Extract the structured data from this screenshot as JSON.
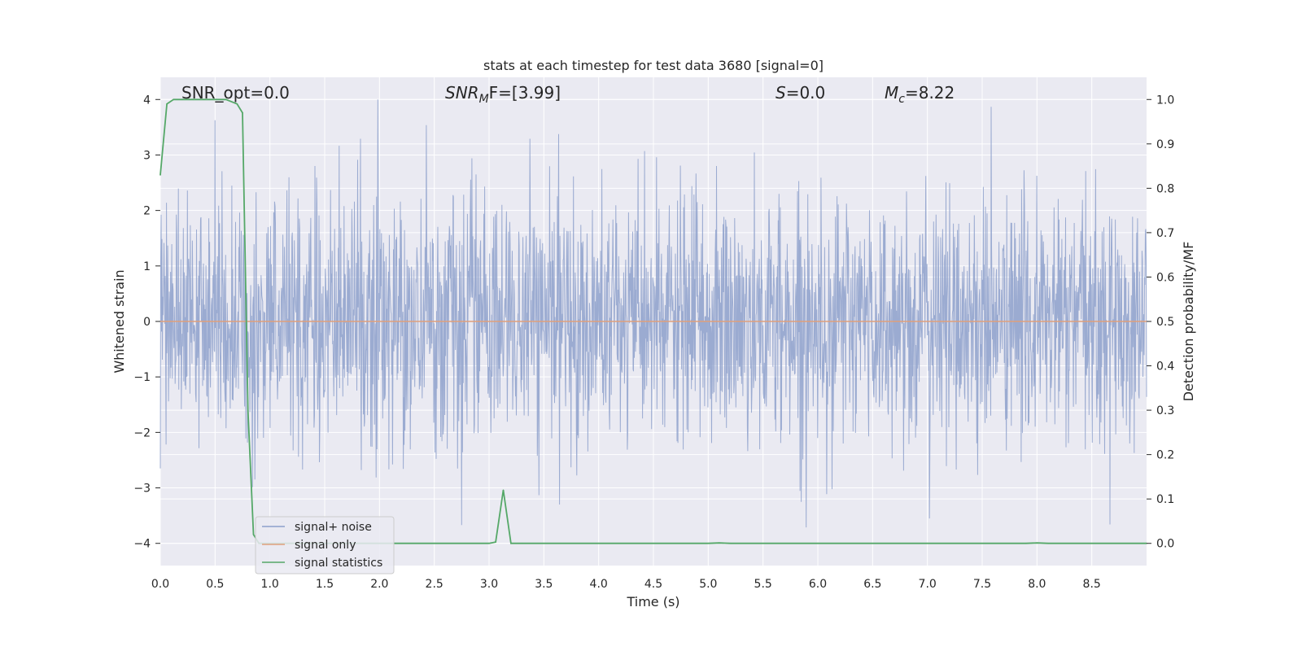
{
  "chart_data": {
    "type": "line",
    "title": "stats at each timestep for test data 3680 [signal=0]",
    "xlabel": "Time (s)",
    "ylabel": "Whitened strain",
    "y2label": "Detection probability/MF",
    "xlim": [
      0,
      9.0
    ],
    "ylim": [
      -4.4,
      4.4
    ],
    "y2lim": [
      -0.05,
      1.05
    ],
    "x_ticks": [
      "0.0",
      "0.5",
      "1.0",
      "1.5",
      "2.0",
      "2.5",
      "3.0",
      "3.5",
      "4.0",
      "4.5",
      "5.0",
      "5.5",
      "6.0",
      "6.5",
      "7.0",
      "7.5",
      "8.0",
      "8.5"
    ],
    "y_ticks": [
      "4",
      "3",
      "2",
      "1",
      "0",
      "−1",
      "−2",
      "−3",
      "−4"
    ],
    "y2_ticks": [
      "1.0",
      "0.9",
      "0.8",
      "0.7",
      "0.6",
      "0.5",
      "0.4",
      "0.3",
      "0.2",
      "0.1",
      "0.0"
    ],
    "grid": true,
    "legend_position": "bottom-left",
    "annotations": [
      {
        "text": "SNR_opt=0.0",
        "x": 0.2
      },
      {
        "text_main": "SNR",
        "text_sub": "M",
        "text_rest": "F=[3.99]",
        "x": 2.6
      },
      {
        "text_main": "S",
        "text_rest": "=0.0",
        "x": 5.6
      },
      {
        "text_main": "M",
        "text_sub": "c",
        "text_rest": "=8.22",
        "x": 6.6
      }
    ],
    "series": [
      {
        "name": "signal+ noise",
        "color": "#8da0cb",
        "axis": "left",
        "noise_band": [
          -2.0,
          2.0
        ],
        "max_abs": 4.0
      },
      {
        "name": "signal only",
        "color": "#e0a07c",
        "axis": "left",
        "values_constant": 0.0
      },
      {
        "name": "signal statistics",
        "color": "#55a868",
        "axis": "right",
        "x": [
          0.0,
          0.06,
          0.12,
          0.2,
          0.3,
          0.4,
          0.5,
          0.6,
          0.7,
          0.75,
          0.8,
          0.85,
          0.9,
          1.0,
          1.5,
          2.0,
          2.5,
          3.0,
          3.06,
          3.13,
          3.2,
          3.3,
          4.0,
          5.0,
          5.1,
          5.2,
          6.0,
          7.0,
          7.9,
          8.0,
          8.1,
          9.0
        ],
        "values": [
          0.83,
          0.99,
          1.0,
          1.0,
          1.0,
          1.0,
          1.0,
          1.0,
          0.99,
          0.97,
          0.3,
          0.02,
          0.0,
          0.0,
          0.0,
          0.0,
          0.0,
          0.0,
          0.003,
          0.12,
          0.0,
          0.0,
          0.0,
          0.0,
          0.001,
          0.0,
          0.0,
          0.0,
          0.0,
          0.001,
          0.0,
          0.0
        ]
      }
    ]
  }
}
